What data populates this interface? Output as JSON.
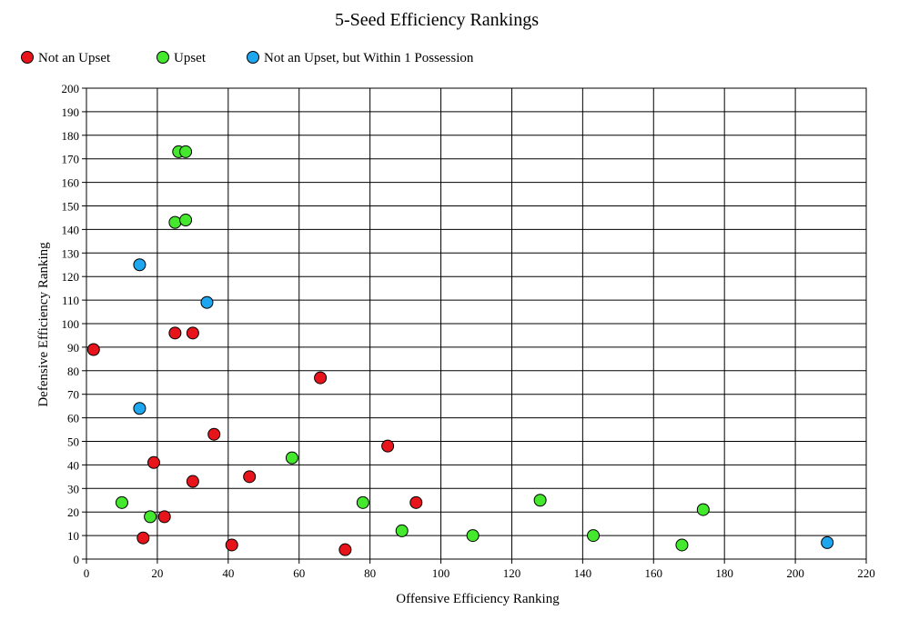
{
  "chart_data": {
    "type": "scatter",
    "title": "5-Seed Efficiency Rankings",
    "xlabel": "Offensive Efficiency Ranking",
    "ylabel": "Defensive Efficiency Ranking",
    "xlim": [
      0,
      220
    ],
    "ylim": [
      0,
      200
    ],
    "xticks": [
      0,
      20,
      40,
      60,
      80,
      100,
      120,
      140,
      160,
      180,
      200,
      220
    ],
    "yticks": [
      0,
      10,
      20,
      30,
      40,
      50,
      60,
      70,
      80,
      90,
      100,
      110,
      120,
      130,
      140,
      150,
      160,
      170,
      180,
      190,
      200
    ],
    "grid": true,
    "legend_position": "top-left",
    "series": [
      {
        "name": "Not an Upset",
        "color": "#e8141b",
        "points": [
          [
            2,
            89
          ],
          [
            16,
            9
          ],
          [
            19,
            41
          ],
          [
            22,
            18
          ],
          [
            25,
            96
          ],
          [
            30,
            96
          ],
          [
            30,
            33
          ],
          [
            36,
            53
          ],
          [
            41,
            6
          ],
          [
            46,
            35
          ],
          [
            66,
            77
          ],
          [
            73,
            4
          ],
          [
            85,
            48
          ],
          [
            93,
            24
          ]
        ]
      },
      {
        "name": "Upset",
        "color": "#44e82c",
        "points": [
          [
            10,
            24
          ],
          [
            18,
            18
          ],
          [
            25,
            143
          ],
          [
            26,
            173
          ],
          [
            28,
            173
          ],
          [
            28,
            144
          ],
          [
            58,
            43
          ],
          [
            78,
            24
          ],
          [
            89,
            12
          ],
          [
            109,
            10
          ],
          [
            128,
            25
          ],
          [
            143,
            10
          ],
          [
            168,
            6
          ],
          [
            174,
            21
          ]
        ]
      },
      {
        "name": "Not an Upset, but Within 1 Possession",
        "color": "#1ea6ee",
        "points": [
          [
            15,
            125
          ],
          [
            15,
            64
          ],
          [
            34,
            109
          ],
          [
            209,
            7
          ]
        ]
      }
    ]
  }
}
